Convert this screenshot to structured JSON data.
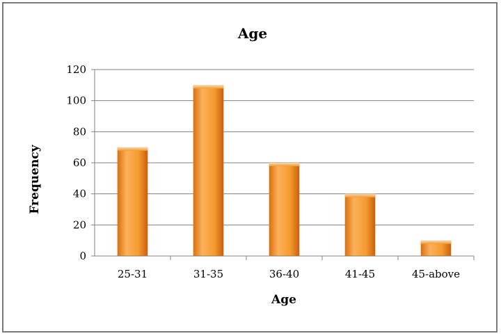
{
  "chart_data": {
    "type": "bar",
    "title": "Age",
    "xlabel": "Age",
    "ylabel": "Frequency",
    "categories": [
      "25-31",
      "31-35",
      "36-40",
      "41-45",
      "45-above"
    ],
    "values": [
      70,
      110,
      60,
      40,
      10
    ],
    "ylim": [
      0,
      120
    ],
    "yticks": [
      "0",
      "20",
      "40",
      "60",
      "80",
      "100",
      "120"
    ],
    "grid": true,
    "legend": "none",
    "colors": {
      "bar_light": "#fbb15a",
      "bar_mid": "#f59a2f",
      "bar_dark": "#c85f0c",
      "grid": "#808080"
    }
  }
}
